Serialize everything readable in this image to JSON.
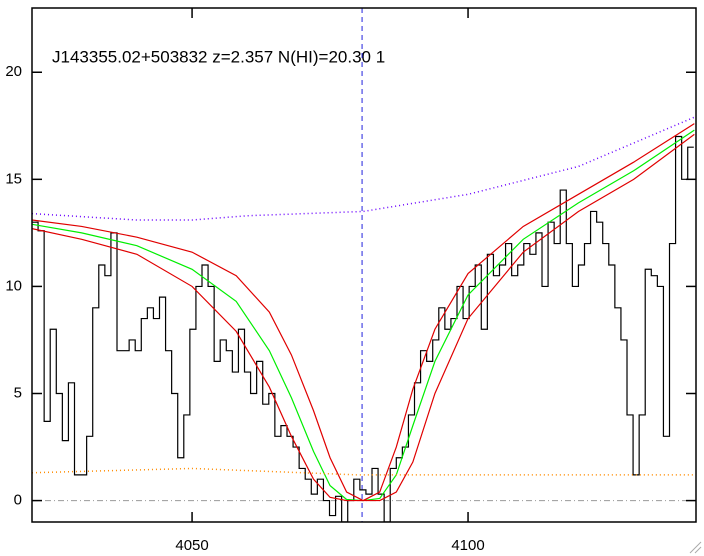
{
  "chart_data": {
    "type": "line",
    "annotation": "J143355.02+503832 z=2.357 N(HI)=20.30 1",
    "xlim": [
      4021,
      4141.3
    ],
    "ylim": [
      -1,
      23
    ],
    "xticks": [
      4050,
      4100
    ],
    "yticks": [
      0,
      5,
      10,
      15,
      20
    ],
    "vline": 4080.8,
    "hline": 0,
    "series": [
      {
        "color": "#000000",
        "style": "step",
        "x": [
          4021,
          4022.1,
          4023.2,
          4024.3,
          4025.4,
          4026.5,
          4027.6,
          4028.7,
          4029.8,
          4030.9,
          4032,
          4033.1,
          4034.2,
          4035.3,
          4036.4,
          4037.5,
          4038.6,
          4039.7,
          4040.8,
          4041.9,
          4043,
          4044.1,
          4045.2,
          4046.3,
          4047.4,
          4048.5,
          4049.6,
          4050.7,
          4051.8,
          4052.9,
          4054,
          4055.1,
          4056.2,
          4057.3,
          4058.4,
          4059.5,
          4060.6,
          4061.7,
          4062.8,
          4063.9,
          4065,
          4066.1,
          4067.2,
          4068.3,
          4069.4,
          4070.5,
          4071.6,
          4072.7,
          4073.8,
          4074.9,
          4076,
          4077.1,
          4078.2,
          4079.3,
          4080.4,
          4081.5,
          4082.6,
          4083.7,
          4084.8,
          4085.9,
          4087,
          4088.1,
          4089.2,
          4090.3,
          4091.4,
          4092.5,
          4093.6,
          4094.7,
          4095.8,
          4096.9,
          4098,
          4099.1,
          4100.2,
          4101.3,
          4102.4,
          4103.5,
          4104.6,
          4105.7,
          4106.8,
          4107.9,
          4109,
          4110.1,
          4111.2,
          4112.3,
          4113.4,
          4114.5,
          4115.6,
          4116.7,
          4117.8,
          4118.9,
          4120,
          4121.1,
          4122.2,
          4123.3,
          4124.4,
          4125.5,
          4126.6,
          4127.7,
          4128.8,
          4129.9,
          4131,
          4132.1,
          4133.2,
          4134.3,
          4135.4,
          4136.5,
          4137.6,
          4138.7,
          4139.8
        ],
        "values": [
          13,
          12.6,
          3.7,
          8,
          5,
          2.8,
          5.5,
          1.2,
          1.2,
          3,
          9,
          11,
          10.5,
          12.5,
          7,
          7,
          7.5,
          7,
          8.5,
          9,
          8.5,
          9.5,
          7,
          5,
          2,
          4,
          8,
          10,
          11,
          10,
          6.5,
          7.5,
          7,
          6,
          8,
          6,
          5,
          6.5,
          4.5,
          5,
          3,
          3.5,
          3,
          2.5,
          1.5,
          1,
          0.3,
          1,
          0,
          -0.7,
          0.2,
          -1,
          0,
          1,
          0.5,
          0.3,
          1.5,
          0.3,
          -1,
          1.5,
          2,
          2.5,
          4,
          5.5,
          7,
          6.5,
          7.5,
          9,
          8,
          8.5,
          10,
          8.5,
          10,
          11,
          8,
          11.5,
          10.5,
          11,
          12,
          10.5,
          11,
          12,
          11.5,
          12.5,
          10,
          13,
          12,
          14.5,
          12,
          10,
          11,
          12,
          13.5,
          13,
          12,
          11,
          9,
          7.5,
          4,
          1.2,
          4,
          10.8,
          10.5,
          10,
          3,
          12,
          17,
          15,
          16.5
        ]
      },
      {
        "color": "#00ee00",
        "style": "solid",
        "x": [
          4021,
          4030,
          4040,
          4050,
          4058,
          4064,
          4068,
          4072,
          4075,
          4078,
          4081,
          4084,
          4087,
          4090,
          4094,
          4100,
          4110,
          4120,
          4130,
          4141
        ],
        "values": [
          12.9,
          12.5,
          11.9,
          10.8,
          9.3,
          7,
          4.8,
          2.3,
          0.7,
          0.05,
          0,
          0.1,
          1.2,
          3.5,
          6.5,
          9.6,
          12.2,
          13.9,
          15.4,
          17.3
        ]
      },
      {
        "color": "#e00000",
        "style": "solid",
        "x": [
          4021,
          4030,
          4040,
          4050,
          4058,
          4064,
          4068,
          4072,
          4075,
          4078,
          4081,
          4084,
          4087,
          4090,
          4094,
          4100,
          4110,
          4120,
          4130,
          4141
        ],
        "values": [
          13.1,
          12.8,
          12.3,
          11.6,
          10.5,
          8.8,
          6.8,
          4.2,
          2,
          0.4,
          0,
          0.4,
          2.5,
          5.2,
          8,
          10.6,
          12.8,
          14.3,
          15.8,
          17.6
        ]
      },
      {
        "color": "#e00000",
        "style": "solid",
        "x": [
          4021,
          4030,
          4040,
          4050,
          4058,
          4064,
          4068,
          4072,
          4075,
          4078,
          4081,
          4084,
          4087,
          4090,
          4094,
          4100,
          4110,
          4120,
          4130,
          4141
        ],
        "values": [
          12.7,
          12.2,
          11.5,
          10,
          7.9,
          5.3,
          3,
          1,
          0.15,
          0,
          0,
          0,
          0.4,
          1.8,
          5,
          8.5,
          11.6,
          13.5,
          15,
          17.1
        ]
      },
      {
        "color": "#6a00ff",
        "style": "dotted",
        "x": [
          4021,
          4040,
          4050,
          4060,
          4081,
          4100,
          4120,
          4141
        ],
        "values": [
          13.4,
          13.1,
          13.1,
          13.3,
          13.5,
          14.3,
          15.6,
          17.9
        ]
      },
      {
        "color": "#ff8c00",
        "style": "dotted",
        "x": [
          4021,
          4050,
          4080,
          4110,
          4141
        ],
        "values": [
          1.3,
          1.5,
          1.2,
          1.2,
          1.2
        ]
      }
    ]
  }
}
